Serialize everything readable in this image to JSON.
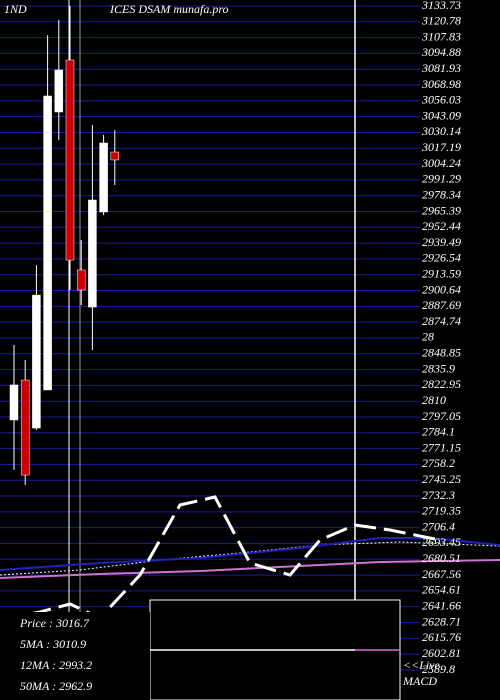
{
  "chart_data": {
    "type": "candlestick",
    "title": "ICES DSAM munafa.pro",
    "subtitle": "1ND",
    "up_color": "#ffffff",
    "down_color": "#cc0000",
    "grid": true,
    "ylim": [
      2589.8,
      3133.73
    ],
    "yticks": [
      3133.73,
      3120.78,
      3107.83,
      3094.88,
      3081.93,
      3068.98,
      3056.03,
      3043.09,
      3030.14,
      3017.19,
      3004.24,
      2991.29,
      2978.34,
      2965.39,
      2952.44,
      2939.49,
      2926.54,
      2913.59,
      2900.64,
      2887.69,
      2874.74,
      {
        "value": 2861.79,
        "label": "28"
      },
      2848.85,
      2835.9,
      2822.95,
      2810,
      2797.05,
      2784.1,
      2771.15,
      2758.2,
      2745.25,
      2732.3,
      2719.35,
      2706.4,
      2693.45,
      2680.51,
      2667.56,
      2654.61,
      2641.66,
      2628.71,
      2615.76,
      2602.81,
      2589.8
    ],
    "open": [
      2794.6,
      2827.3,
      2788.0,
      2819.2,
      3046.9,
      3089.5,
      2917.5,
      2887.1,
      2965.0,
      3014.1
    ],
    "high": [
      2856.0,
      2843.7,
      2921.5,
      3109.9,
      3122.3,
      3133.7,
      2942.0,
      3036.2,
      3028.1,
      3032.2
    ],
    "low": [
      2753.6,
      2741.3,
      2786.4,
      2819.2,
      3024.0,
      2901.1,
      2888.8,
      2851.9,
      2962.5,
      2987.1
    ],
    "close": [
      2823.3,
      2749.5,
      2896.9,
      3060.0,
      3081.3,
      2925.6,
      2901.1,
      2974.8,
      3021.5,
      3007.6
    ],
    "annotations": [
      "Price  : 3016.7",
      "5MA : 3010.9",
      "12MA : 2993.2",
      "50MA : 2962.9"
    ],
    "indicator_label": [
      "<<Live",
      "MACD"
    ]
  }
}
